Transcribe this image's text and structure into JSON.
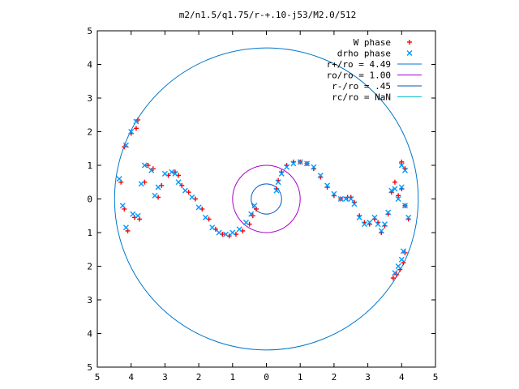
{
  "chart_data": {
    "type": "scatter",
    "title": "m2/n1.5/q1.75/r-+.10-j53/M2.0/512",
    "xlabel": "",
    "ylabel": "",
    "xlim": [
      -5,
      5
    ],
    "ylim": [
      -5,
      5
    ],
    "x_ticks": [
      -5,
      -4,
      -3,
      -2,
      -1,
      0,
      1,
      2,
      3,
      4,
      5
    ],
    "y_ticks": [
      -5,
      -4,
      -3,
      -2,
      -1,
      0,
      1,
      2,
      3,
      4,
      5
    ],
    "x_tick_labels": [
      "5",
      "4",
      "3",
      "2",
      "1",
      "0",
      "1",
      "2",
      "3",
      "4",
      "5"
    ],
    "y_tick_labels": [
      "5",
      "4",
      "3",
      "2",
      "1",
      "0",
      "1",
      "2",
      "3",
      "4",
      "5"
    ],
    "grid": false,
    "legend_position": "top-right",
    "series": [
      {
        "name": "W phase",
        "kind": "points",
        "marker": "+",
        "color": "#ff0000",
        "x": [
          0.3,
          0.35,
          0.45,
          0.6,
          0.8,
          1.0,
          1.2,
          1.4,
          1.6,
          1.8,
          2.0,
          2.2,
          2.4,
          2.5,
          2.6,
          2.75,
          2.9,
          3.05,
          3.2,
          3.3,
          3.4,
          3.5,
          3.6,
          3.7,
          3.8,
          3.9,
          4.0,
          4.1,
          4.2,
          4.1,
          4.0,
          -0.3,
          -0.4,
          -0.5,
          -0.7,
          -0.9,
          -1.1,
          -1.3,
          -1.5,
          -1.7,
          -1.9,
          -2.1,
          -2.3,
          -2.5,
          -2.6,
          -2.7,
          -2.9,
          -3.1,
          -3.2,
          -3.35,
          -3.5,
          -3.6,
          -3.75,
          -3.9,
          -4.1,
          -4.2,
          -4.3,
          -4.2,
          -4.0,
          -3.8,
          -3.85,
          3.75,
          3.85,
          3.95,
          4.05,
          4.1
        ],
        "y": [
          0.3,
          0.55,
          0.8,
          1.0,
          1.1,
          1.1,
          1.05,
          0.9,
          0.65,
          0.35,
          0.1,
          0.0,
          0.05,
          0.05,
          -0.1,
          -0.5,
          -0.7,
          -0.75,
          -0.6,
          -0.7,
          -1.0,
          -0.8,
          -0.45,
          0.2,
          0.5,
          0.1,
          0.3,
          0.9,
          -0.6,
          -0.2,
          1.1,
          -0.3,
          -0.5,
          -0.75,
          -0.95,
          -1.05,
          -1.1,
          -1.05,
          -0.9,
          -0.6,
          -0.3,
          0.0,
          0.2,
          0.4,
          0.7,
          0.8,
          0.7,
          0.4,
          0.05,
          0.9,
          1.0,
          0.5,
          -0.6,
          -0.55,
          -0.95,
          -0.3,
          0.5,
          1.55,
          1.95,
          2.35,
          2.1,
          -2.35,
          -2.25,
          -2.1,
          -1.9,
          -1.6
        ]
      },
      {
        "name": "drho phase",
        "kind": "points",
        "marker": "x",
        "color": "#0099ff",
        "x": [
          0.3,
          0.35,
          0.45,
          0.6,
          0.8,
          1.0,
          1.2,
          1.4,
          1.6,
          1.8,
          2.0,
          2.2,
          2.35,
          2.5,
          2.6,
          2.75,
          2.9,
          3.05,
          3.2,
          3.3,
          3.4,
          3.5,
          3.6,
          3.7,
          3.8,
          3.9,
          4.0,
          4.1,
          4.2,
          4.1,
          4.0,
          -0.35,
          -0.45,
          -0.6,
          -0.8,
          -1.0,
          -1.2,
          -1.4,
          -1.6,
          -1.8,
          -2.0,
          -2.2,
          -2.4,
          -2.6,
          -2.7,
          -2.8,
          -3.0,
          -3.2,
          -3.3,
          -3.4,
          -3.6,
          -3.7,
          -3.8,
          -3.95,
          -4.15,
          -4.25,
          -4.35,
          -4.15,
          -4.0,
          -3.85,
          3.8,
          3.9,
          4.0,
          4.05
        ],
        "y": [
          0.25,
          0.5,
          0.75,
          0.95,
          1.05,
          1.1,
          1.05,
          0.95,
          0.7,
          0.4,
          0.15,
          0.0,
          0.0,
          0.0,
          -0.15,
          -0.55,
          -0.75,
          -0.7,
          -0.55,
          -0.75,
          -0.95,
          -0.75,
          -0.4,
          0.25,
          0.3,
          0.0,
          0.35,
          0.85,
          -0.55,
          -0.2,
          1.0,
          -0.2,
          -0.45,
          -0.7,
          -0.9,
          -1.0,
          -1.05,
          -1.0,
          -0.85,
          -0.55,
          -0.25,
          0.05,
          0.25,
          0.5,
          0.75,
          0.8,
          0.75,
          0.35,
          0.1,
          0.85,
          1.0,
          0.45,
          -0.5,
          -0.45,
          -0.85,
          -0.2,
          0.6,
          1.6,
          2.0,
          2.3,
          -2.2,
          -2.0,
          -1.8,
          -1.55
        ]
      },
      {
        "name": "r+/ro = 4.49",
        "kind": "circle",
        "radius": 4.49,
        "color": "#0077cc"
      },
      {
        "name": "ro/ro = 1.00",
        "kind": "circle",
        "radius": 1.0,
        "color": "#aa00cc"
      },
      {
        "name": "r-/ro = .45",
        "kind": "circle",
        "radius": 0.45,
        "color": "#0055bb"
      },
      {
        "name": "rc/ro = NaN",
        "kind": "circle",
        "radius": null,
        "color": "#00bbcc"
      }
    ]
  }
}
